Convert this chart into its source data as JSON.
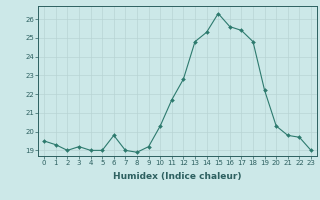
{
  "x": [
    0,
    1,
    2,
    3,
    4,
    5,
    6,
    7,
    8,
    9,
    10,
    11,
    12,
    13,
    14,
    15,
    16,
    17,
    18,
    19,
    20,
    21,
    22,
    23
  ],
  "y": [
    19.5,
    19.3,
    19.0,
    19.2,
    19.0,
    19.0,
    19.8,
    19.0,
    18.9,
    19.2,
    20.3,
    21.7,
    22.8,
    24.8,
    25.3,
    26.3,
    25.6,
    25.4,
    24.8,
    22.2,
    20.3,
    19.8,
    19.7,
    19.0
  ],
  "line_color": "#2d7a6e",
  "marker": "D",
  "marker_size": 2.0,
  "bg_color": "#cce8e8",
  "grid_color": "#b8d8d8",
  "title": "",
  "xlabel": "Humidex (Indice chaleur)",
  "ylabel": "",
  "xlim": [
    -0.5,
    23.5
  ],
  "ylim": [
    18.7,
    26.7
  ],
  "yticks": [
    19,
    20,
    21,
    22,
    23,
    24,
    25,
    26
  ],
  "xticks": [
    0,
    1,
    2,
    3,
    4,
    5,
    6,
    7,
    8,
    9,
    10,
    11,
    12,
    13,
    14,
    15,
    16,
    17,
    18,
    19,
    20,
    21,
    22,
    23
  ],
  "tick_color": "#2d6060",
  "label_color": "#2d6060",
  "axis_color": "#2d6060",
  "grid_major_color": "#b8d4d4",
  "tick_fontsize": 5.0,
  "xlabel_fontsize": 6.5,
  "xlabel_fontweight": "bold"
}
